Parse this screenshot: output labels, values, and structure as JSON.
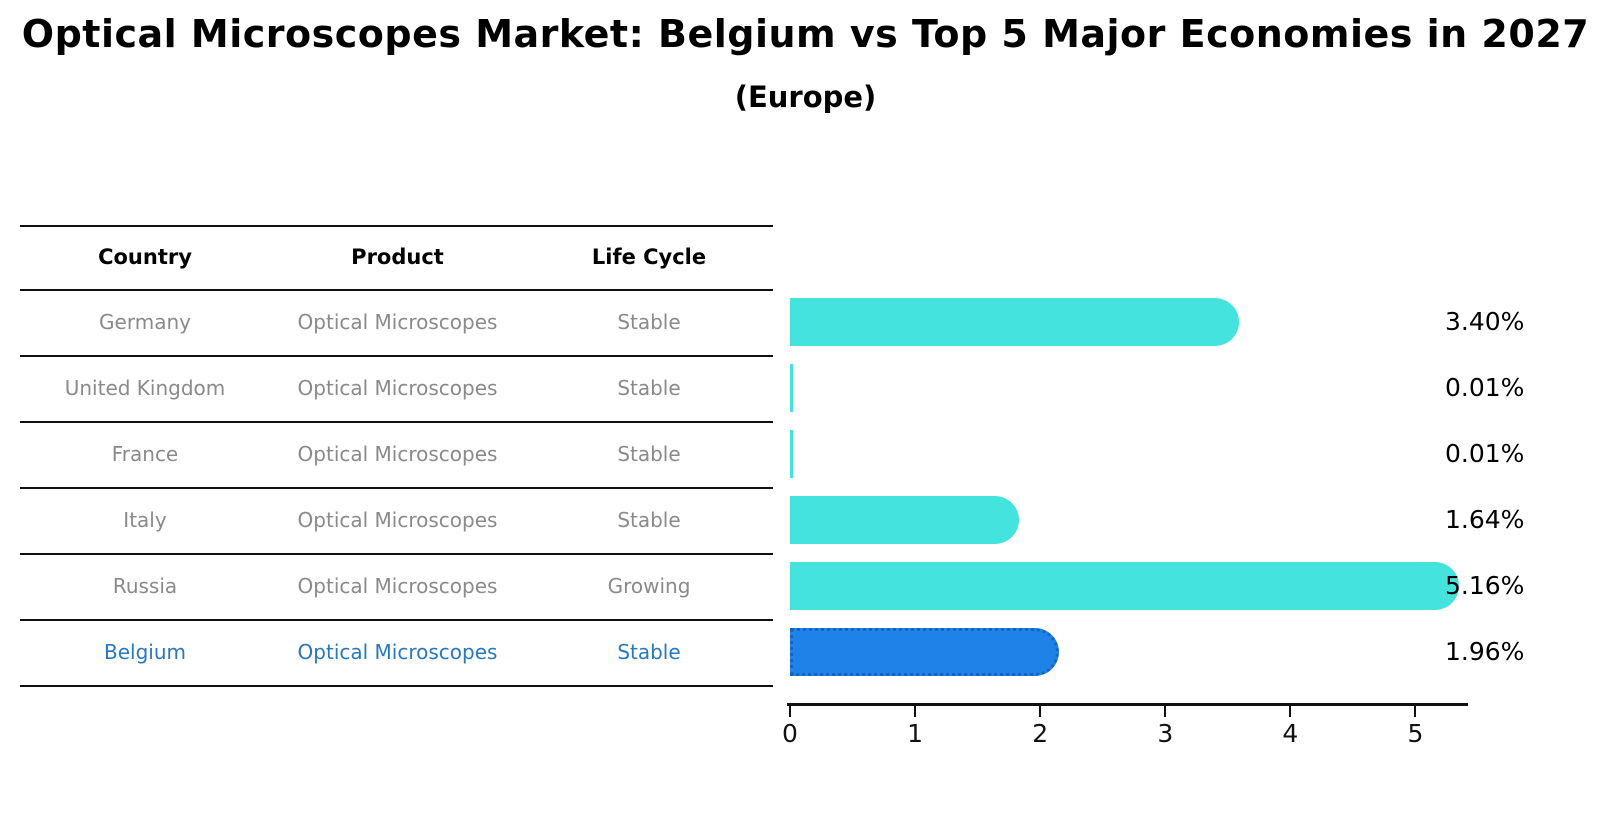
{
  "header": {
    "title": "Optical Microscopes Market: Belgium vs Top 5 Major Economies in 2027",
    "subtitle": "(Europe)"
  },
  "table": {
    "headers": [
      "Country",
      "Product",
      "Life Cycle"
    ],
    "rows": [
      {
        "country": "Germany",
        "product": "Optical Microscopes",
        "life_cycle": "Stable",
        "highlighted": false
      },
      {
        "country": "United Kingdom",
        "product": "Optical Microscopes",
        "life_cycle": "Stable",
        "highlighted": false
      },
      {
        "country": "France",
        "product": "Optical Microscopes",
        "life_cycle": "Stable",
        "highlighted": false
      },
      {
        "country": "Italy",
        "product": "Optical Microscopes",
        "life_cycle": "Stable",
        "highlighted": false
      },
      {
        "country": "Russia",
        "product": "Optical Microscopes",
        "life_cycle": "Growing",
        "highlighted": false
      },
      {
        "country": "Belgium",
        "product": "Optical Microscopes",
        "life_cycle": "Stable",
        "highlighted": true
      }
    ]
  },
  "chart_data": {
    "type": "bar",
    "orientation": "horizontal",
    "title": "Optical Microscopes Market: Belgium vs Top 5 Major Economies in 2027 (Europe)",
    "categories": [
      "Germany",
      "United Kingdom",
      "France",
      "Italy",
      "Russia",
      "Belgium"
    ],
    "values": [
      3.4,
      0.01,
      0.01,
      1.64,
      5.16,
      1.96
    ],
    "value_labels": [
      "3.40%",
      "0.01%",
      "0.01%",
      "1.64%",
      "5.16%",
      "1.96%"
    ],
    "xlabel": "",
    "ylabel": "",
    "x_ticks": [
      0,
      1,
      2,
      3,
      4,
      5
    ],
    "xlim": [
      0,
      5.42
    ],
    "grid": false,
    "legend": false,
    "highlight_index": 5,
    "colors": {
      "bar": "#44E3DE",
      "highlight_bar": "#1F82E8",
      "highlight_border": "#1565C0",
      "highlight_text": "#2878BE",
      "row_text": "#8a8a8a",
      "header_text": "#000000",
      "axis": "#111111",
      "value_label": "#000000"
    }
  }
}
